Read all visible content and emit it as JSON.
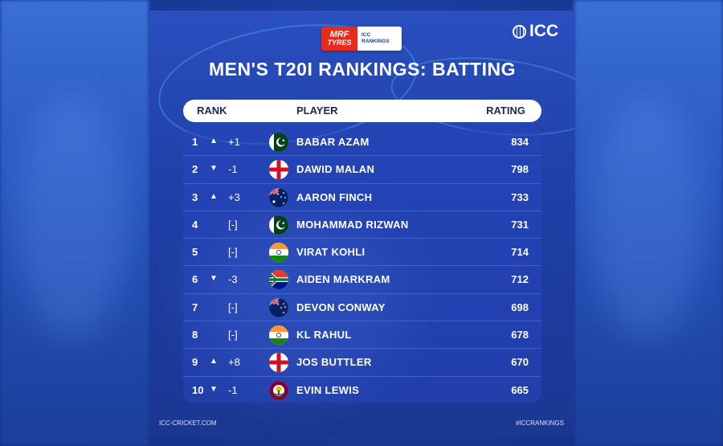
{
  "sponsor": {
    "mrf_line1": "MRF",
    "mrf_line2": "TYRES",
    "icc_line1": "ICC",
    "icc_line2": "RANKINGS"
  },
  "brand": {
    "icc_text": "ICC"
  },
  "title": "MEN'S T20I RANKINGS: BATTING",
  "headers": {
    "rank": "RANK",
    "player": "PLAYER",
    "rating": "RATING"
  },
  "rows": [
    {
      "rank": "1",
      "arrow": "▲",
      "move": "+1",
      "flag": "pakistan-flag",
      "name": "BABAR AZAM",
      "rating": "834"
    },
    {
      "rank": "2",
      "arrow": "▼",
      "move": "-1",
      "flag": "england-flag",
      "name": "DAWID MALAN",
      "rating": "798"
    },
    {
      "rank": "3",
      "arrow": "▲",
      "move": "+3",
      "flag": "australia-flag",
      "name": "AARON FINCH",
      "rating": "733"
    },
    {
      "rank": "4",
      "arrow": "",
      "move": "[-]",
      "flag": "pakistan-flag",
      "name": "MOHAMMAD RIZWAN",
      "rating": "731"
    },
    {
      "rank": "5",
      "arrow": "",
      "move": "[-]",
      "flag": "india-flag",
      "name": "VIRAT KOHLI",
      "rating": "714"
    },
    {
      "rank": "6",
      "arrow": "▼",
      "move": "-3",
      "flag": "south-africa-flag",
      "name": "AIDEN MARKRAM",
      "rating": "712"
    },
    {
      "rank": "7",
      "arrow": "",
      "move": "[-]",
      "flag": "new-zealand-flag",
      "name": "DEVON CONWAY",
      "rating": "698"
    },
    {
      "rank": "8",
      "arrow": "",
      "move": "[-]",
      "flag": "india-flag",
      "name": "KL RAHUL",
      "rating": "678"
    },
    {
      "rank": "9",
      "arrow": "▲",
      "move": "+8",
      "flag": "england-flag",
      "name": "JOS BUTTLER",
      "rating": "670"
    },
    {
      "rank": "10",
      "arrow": "▼",
      "move": "-1",
      "flag": "west-indies-flag",
      "name": "EVIN LEWIS",
      "rating": "665"
    }
  ],
  "footer": {
    "left": "ICC-CRICKET.COM",
    "right": "#ICCRANKINGS"
  },
  "colors": {
    "card": "#1f40a8",
    "row_bg": "#2846be",
    "accent_red": "#e42b1c"
  }
}
